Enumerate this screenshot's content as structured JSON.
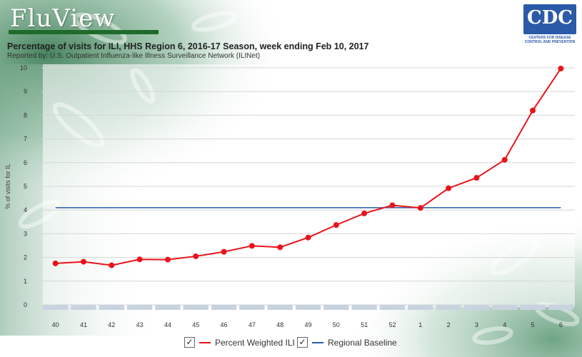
{
  "header": {
    "logo": "FluView",
    "cdc_logo": "CDC",
    "cdc_tagline": "CENTERS FOR DISEASE CONTROL AND PREVENTION",
    "title": "Percentage of visits for ILI,  HHS Region 6,  2016-17 Season,   week ending Feb 10, 2017",
    "subtitle": "Reported by: U.S. Outpatient Influenza-like Illness Surveillance Network (ILINet)"
  },
  "chart_data": {
    "type": "line",
    "title": "Percentage of visits for ILI,  HHS Region 6,  2016-17 Season,   week ending Feb 10, 2017",
    "xlabel": "",
    "ylabel": "% of visits for IL",
    "ylim": [
      0,
      10
    ],
    "yticks": [
      "0",
      "1",
      "2",
      "3",
      "4",
      "5",
      "6",
      "7",
      "8",
      "9",
      "10"
    ],
    "categories": [
      "40",
      "41",
      "42",
      "43",
      "44",
      "45",
      "46",
      "47",
      "48",
      "49",
      "50",
      "51",
      "52",
      "1",
      "2",
      "3",
      "4",
      "5",
      "6"
    ],
    "grid": true,
    "legend_position": "bottom",
    "series": [
      {
        "name": "Percent Weighted ILI",
        "color": "#e8141b",
        "values": [
          1.75,
          1.82,
          1.67,
          1.92,
          1.91,
          2.05,
          2.24,
          2.49,
          2.43,
          2.84,
          3.37,
          3.86,
          4.2,
          4.09,
          4.92,
          5.36,
          6.12,
          8.2,
          9.97
        ]
      },
      {
        "name": "Regional Baseline",
        "color": "#2a5aa8",
        "values": [
          4.1,
          4.1,
          4.1,
          4.1,
          4.1,
          4.1,
          4.1,
          4.1,
          4.1,
          4.1,
          4.1,
          4.1,
          4.1,
          4.1,
          4.1,
          4.1,
          4.1,
          4.1,
          4.1
        ]
      }
    ]
  },
  "legend": {
    "check_glyph": "✓",
    "items": [
      {
        "label": "Percent Weighted ILI",
        "color": "#e8141b"
      },
      {
        "label": "Regional Baseline",
        "color": "#2a5aa8"
      }
    ]
  },
  "colors": {
    "background_green": "#4f8f6a",
    "logo_bar": "#1f6b2a",
    "cdc_blue": "#2a5aa8"
  }
}
